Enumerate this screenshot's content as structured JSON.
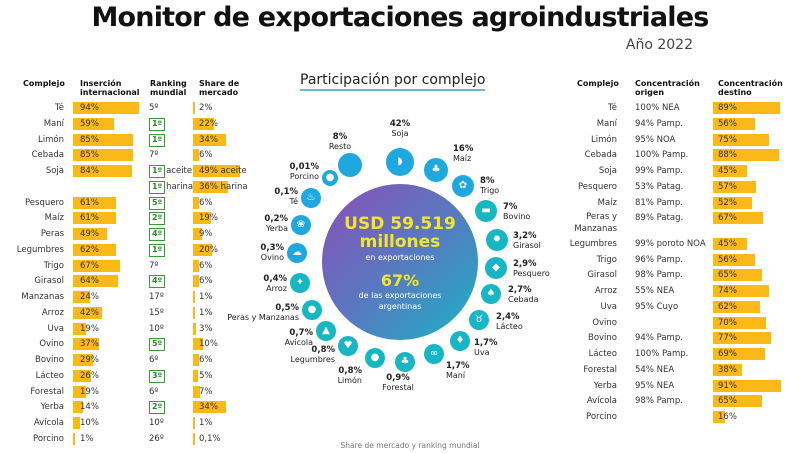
{
  "title": "Monitor de exportaciones agroindustriales",
  "year": "Año 2022",
  "left_table": {
    "headers": {
      "complejo": "Complejo",
      "insercion": "Inserción internacional",
      "ranking": "Ranking mundial",
      "share": "Share de mercado"
    },
    "rows": [
      {
        "name": "Té",
        "insercion": 94,
        "insercion_text": "94%",
        "ranking": "5º",
        "top5": false,
        "share": 2,
        "share_text": "2%"
      },
      {
        "name": "Maní",
        "insercion": 59,
        "insercion_text": "59%",
        "ranking": "1º",
        "top5": true,
        "share": 22,
        "share_text": "22%"
      },
      {
        "name": "Limón",
        "insercion": 85,
        "insercion_text": "85%",
        "ranking": "1º",
        "top5": true,
        "share": 34,
        "share_text": "34%"
      },
      {
        "name": "Cebada",
        "insercion": 85,
        "insercion_text": "85%",
        "ranking": "7º",
        "top5": false,
        "share": 6,
        "share_text": "6%"
      },
      {
        "name": "Soja",
        "insercion": 84,
        "insercion_text": "84%",
        "ranking": "1º",
        "ranking_note": "aceite",
        "top5": true,
        "share": 49,
        "share_text": "49% aceite"
      },
      {
        "name": "",
        "insercion": null,
        "insercion_text": "",
        "ranking": "1º",
        "ranking_note": "harina",
        "top5": true,
        "share": 36,
        "share_text": "36% harina"
      },
      {
        "name": "Pesquero",
        "insercion": 61,
        "insercion_text": "61%",
        "ranking": "5º",
        "top5": true,
        "share": 6,
        "share_text": "6%"
      },
      {
        "name": "Maíz",
        "insercion": 61,
        "insercion_text": "61%",
        "ranking": "2º",
        "top5": true,
        "share": 19,
        "share_text": "19%"
      },
      {
        "name": "Peras",
        "insercion": 49,
        "insercion_text": "49%",
        "ranking": "4º",
        "top5": true,
        "share": 9,
        "share_text": "9%"
      },
      {
        "name": "Legumbres",
        "insercion": 62,
        "insercion_text": "62%",
        "ranking": "1º",
        "top5": true,
        "share": 20,
        "share_text": "20%"
      },
      {
        "name": "Trigo",
        "insercion": 67,
        "insercion_text": "67%",
        "ranking": "7º",
        "top5": false,
        "share": 6,
        "share_text": "6%"
      },
      {
        "name": "Girasol",
        "insercion": 64,
        "insercion_text": "64%",
        "ranking": "4º",
        "top5": true,
        "share": 6,
        "share_text": "6%"
      },
      {
        "name": "Manzanas",
        "insercion": 24,
        "insercion_text": "24%",
        "ranking": "17º",
        "top5": false,
        "share": 1,
        "share_text": "1%"
      },
      {
        "name": "Arroz",
        "insercion": 42,
        "insercion_text": "42%",
        "ranking": "15º",
        "top5": false,
        "share": 1,
        "share_text": "1%"
      },
      {
        "name": "Uva",
        "insercion": 19,
        "insercion_text": "19%",
        "ranking": "10º",
        "top5": false,
        "share": 3,
        "share_text": "3%"
      },
      {
        "name": "Ovino",
        "insercion": 37,
        "insercion_text": "37%",
        "ranking": "5º",
        "top5": true,
        "share": 10,
        "share_text": "10%"
      },
      {
        "name": "Bovino",
        "insercion": 29,
        "insercion_text": "29%",
        "ranking": "6º",
        "top5": false,
        "share": 6,
        "share_text": "6%"
      },
      {
        "name": "Lácteo",
        "insercion": 26,
        "insercion_text": "26%",
        "ranking": "3º",
        "top5": true,
        "share": 5,
        "share_text": "5%"
      },
      {
        "name": "Forestal",
        "insercion": 19,
        "insercion_text": "19%",
        "ranking": "6º",
        "top5": false,
        "share": 7,
        "share_text": "7%"
      },
      {
        "name": "Yerba",
        "insercion": 14,
        "insercion_text": "14%",
        "ranking": "2º",
        "top5": true,
        "share": 34,
        "share_text": "34%"
      },
      {
        "name": "Avícola",
        "insercion": 10,
        "insercion_text": "10%",
        "ranking": "10º",
        "top5": false,
        "share": 1,
        "share_text": "1%"
      },
      {
        "name": "Porcino",
        "insercion": 1,
        "insercion_text": "1%",
        "ranking": "26º",
        "top5": false,
        "share": 0.1,
        "share_text": "0,1%"
      }
    ]
  },
  "center": {
    "heading": "Participación por complejo",
    "total": "USD 59.519",
    "total_unit": "millones",
    "total_caption": "en exportaciones",
    "share": "67%",
    "share_caption_1": "de las exportaciones",
    "share_caption_2": "argentinas",
    "colors": {
      "circle_start": "#8a4fb8",
      "circle_end": "#17b4c4",
      "highlight": "#f5e52a",
      "icon": "#1fa8e0"
    },
    "items": [
      {
        "name": "Soja",
        "pct": "42%",
        "icon": "soybean-icon"
      },
      {
        "name": "Maíz",
        "pct": "16%",
        "icon": "corn-icon"
      },
      {
        "name": "Trigo",
        "pct": "8%",
        "icon": "wheat-icon"
      },
      {
        "name": "Bovino",
        "pct": "7%",
        "icon": "cow-icon"
      },
      {
        "name": "Girasol",
        "pct": "3,2%",
        "icon": "sunflower-icon"
      },
      {
        "name": "Pesquero",
        "pct": "2,9%",
        "icon": "fish-icon"
      },
      {
        "name": "Cebada",
        "pct": "2,7%",
        "icon": "barley-icon"
      },
      {
        "name": "Lácteo",
        "pct": "2,4%",
        "icon": "dairy-cow-icon"
      },
      {
        "name": "Uva",
        "pct": "1,7%",
        "icon": "grape-icon"
      },
      {
        "name": "Maní",
        "pct": "1,7%",
        "icon": "peanut-icon"
      },
      {
        "name": "Forestal",
        "pct": "0,9%",
        "icon": "trees-icon"
      },
      {
        "name": "Limón",
        "pct": "0,8%",
        "icon": "lemon-icon"
      },
      {
        "name": "Legumbres",
        "pct": "0,8%",
        "icon": "legumes-icon"
      },
      {
        "name": "Avícola",
        "pct": "0,7%",
        "icon": "chicken-icon"
      },
      {
        "name": "Peras y Manzanas",
        "pct": "0,5%",
        "icon": "apple-icon"
      },
      {
        "name": "Arroz",
        "pct": "0,4%",
        "icon": "rice-icon"
      },
      {
        "name": "Ovino",
        "pct": "0,3%",
        "icon": "sheep-icon"
      },
      {
        "name": "Yerba",
        "pct": "0,2%",
        "icon": "yerba-icon"
      },
      {
        "name": "Té",
        "pct": "0,1%",
        "icon": "tea-leaf-icon"
      },
      {
        "name": "Porcino",
        "pct": "0,01%",
        "icon": "pig-icon"
      },
      {
        "name": "Resto",
        "pct": "8%",
        "icon": "circle-icon"
      }
    ]
  },
  "right_table": {
    "headers": {
      "complejo": "Complejo",
      "origen": "Concentración origen",
      "destino": "Concentración destino"
    },
    "rows": [
      {
        "name": "Té",
        "origen": "100% NEA",
        "destino": 89,
        "destino_text": "89%"
      },
      {
        "name": "Maní",
        "origen": "94% Pamp.",
        "destino": 56,
        "destino_text": "56%"
      },
      {
        "name": "Limón",
        "origen": "95% NOA",
        "destino": 75,
        "destino_text": "75%"
      },
      {
        "name": "Cebada",
        "origen": "100% Pamp.",
        "destino": 88,
        "destino_text": "88%"
      },
      {
        "name": "Soja",
        "origen": "99% Pamp.",
        "destino": 45,
        "destino_text": "45%"
      },
      {
        "name": "Pesquero",
        "origen": "53% Patag.",
        "destino": 57,
        "destino_text": "57%"
      },
      {
        "name": "Maíz",
        "origen": "81% Pamp.",
        "destino": 52,
        "destino_text": "52%"
      },
      {
        "name": "Peras y Manzanas",
        "origen": "89% Patag.",
        "destino": 67,
        "destino_text": "67%"
      },
      {
        "name": "Legumbres",
        "origen": "99% poroto NOA",
        "destino": 45,
        "destino_text": "45%"
      },
      {
        "name": "Trigo",
        "origen": "96% Pamp.",
        "destino": 56,
        "destino_text": "56%"
      },
      {
        "name": "Girasol",
        "origen": "98% Pamp.",
        "destino": 65,
        "destino_text": "65%"
      },
      {
        "name": "Arroz",
        "origen": "55% NEA",
        "destino": 74,
        "destino_text": "74%"
      },
      {
        "name": "Uva",
        "origen": "95% Cuyo",
        "destino": 62,
        "destino_text": "62%"
      },
      {
        "name": "Ovino",
        "origen": "",
        "destino": 70,
        "destino_text": "70%"
      },
      {
        "name": "Bovino",
        "origen": "94% Pamp.",
        "destino": 77,
        "destino_text": "77%"
      },
      {
        "name": "Lácteo",
        "origen": "100% Pamp.",
        "destino": 69,
        "destino_text": "69%"
      },
      {
        "name": "Forestal",
        "origen": "54% NEA",
        "destino": 38,
        "destino_text": "38%"
      },
      {
        "name": "Yerba",
        "origen": "95% NEA",
        "destino": 91,
        "destino_text": "91%"
      },
      {
        "name": "Avícola",
        "origen": "98% Pamp.",
        "destino": 65,
        "destino_text": "65%"
      },
      {
        "name": "Porcino",
        "origen": "",
        "destino": 16,
        "destino_text": "16%"
      }
    ]
  },
  "footer": "Share de mercado y ranking mundial"
}
